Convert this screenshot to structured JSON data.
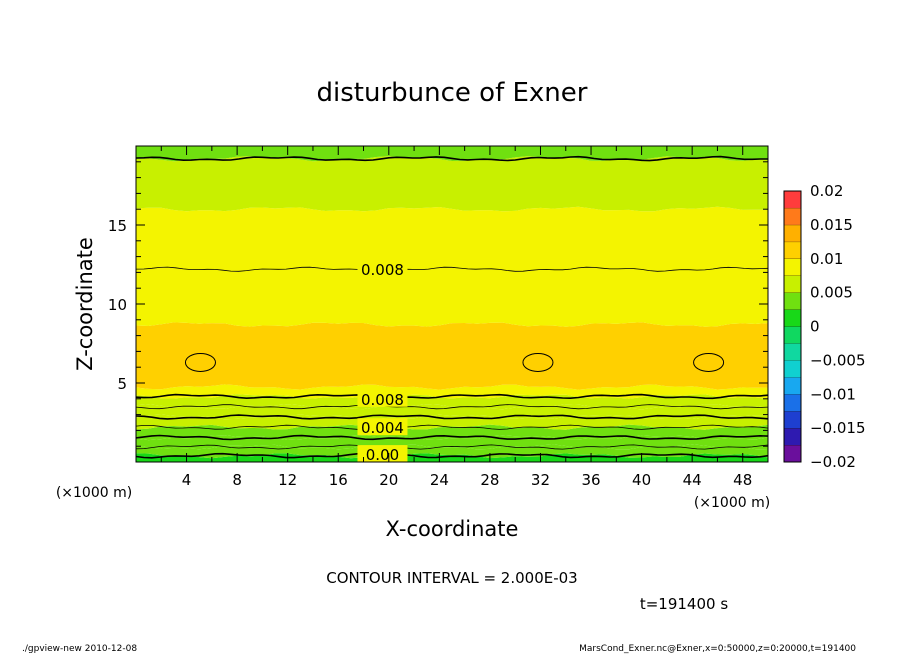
{
  "chart_data": {
    "type": "heatmap",
    "title": "disturbunce of Exner",
    "xlabel": "X-coordinate",
    "ylabel": "Z-coordinate",
    "x_unit": "(×1000 m)",
    "y_unit": "(×1000 m)",
    "xlim": [
      0,
      50
    ],
    "ylim": [
      0,
      20
    ],
    "x_ticks": [
      4,
      8,
      12,
      16,
      20,
      24,
      28,
      32,
      36,
      40,
      44,
      48
    ],
    "y_ticks": [
      5,
      10,
      15
    ],
    "colorbar": {
      "ticks": [
        "0.02",
        "0.015",
        "0.01",
        "0.005",
        "0",
        "−0.005",
        "−0.01",
        "−0.015",
        "−0.02"
      ],
      "levels": [
        -0.02,
        -0.0175,
        -0.015,
        -0.0125,
        -0.01,
        -0.0075,
        -0.005,
        -0.0025,
        0,
        0.0025,
        0.005,
        0.0075,
        0.01,
        0.0125,
        0.015,
        0.0175,
        0.02
      ],
      "colors": [
        "#6a0f9c",
        "#2e1ab0",
        "#1e3fd0",
        "#1a70e8",
        "#18a8f0",
        "#10d0d0",
        "#10d8a0",
        "#10d860",
        "#18d818",
        "#70e010",
        "#c8f000",
        "#f4f400",
        "#ffd000",
        "#ffb000",
        "#ff7a1a",
        "#ff3c3c"
      ]
    },
    "contour_labels": [
      {
        "text": "0.008",
        "x": 19.5,
        "z": 12.2
      },
      {
        "text": "0.008",
        "x": 19.5,
        "z": 4.0
      },
      {
        "text": "0.004",
        "x": 19.5,
        "z": 2.2
      },
      {
        "text": "0.00",
        "x": 19.5,
        "z": 0.5
      }
    ],
    "bands": [
      {
        "from": 0,
        "to": 0.4,
        "value": 0.0
      },
      {
        "from": 0.4,
        "to": 0.95,
        "value": 0.0025
      },
      {
        "from": 0.95,
        "to": 1.55,
        "value": 0.003
      },
      {
        "from": 1.55,
        "to": 2.2,
        "value": 0.004
      },
      {
        "from": 2.2,
        "to": 2.85,
        "value": 0.005
      },
      {
        "from": 2.85,
        "to": 3.5,
        "value": 0.006
      },
      {
        "from": 3.5,
        "to": 4.15,
        "value": 0.007
      },
      {
        "from": 4.15,
        "to": 4.75,
        "value": 0.008
      },
      {
        "from": 4.75,
        "to": 8.7,
        "value": 0.0105
      },
      {
        "from": 8.7,
        "to": 12.2,
        "value": 0.009
      },
      {
        "from": 12.2,
        "to": 16.0,
        "value": 0.0075
      },
      {
        "from": 16.0,
        "to": 19.2,
        "value": 0.0058
      },
      {
        "from": 19.2,
        "to": 20.0,
        "value": 0.0045
      }
    ],
    "cells": [
      {
        "x": 5.1,
        "z": 6.3,
        "value": 0.012
      },
      {
        "x": 31.8,
        "z": 6.3,
        "value": 0.012
      },
      {
        "x": 45.3,
        "z": 6.3,
        "value": 0.012
      }
    ]
  },
  "annotations": {
    "contour_interval": "CONTOUR INTERVAL = 2.000E-03",
    "time": "t=191400 s",
    "footer_left": "./gpview-new   2010-12-08",
    "footer_right": "MarsCond_Exner.nc@Exner,x=0:50000,z=0:20000,t=191400"
  }
}
